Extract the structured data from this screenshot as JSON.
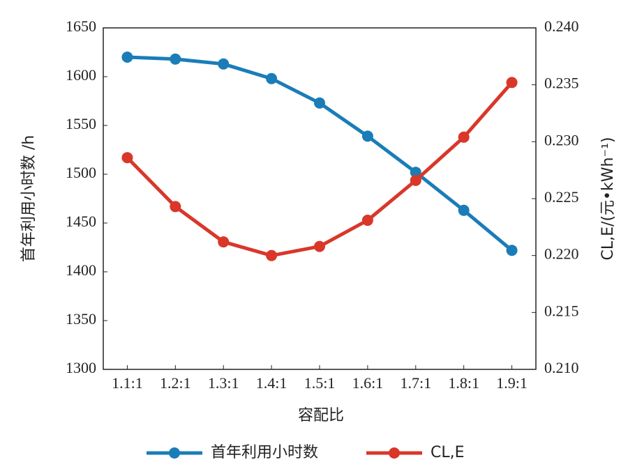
{
  "chart_data": {
    "type": "line",
    "ylabel": "首年利用小时数 /h",
    "y2label": "CL,E/(元•kWh⁻¹)",
    "xlabel": "容配比",
    "categories": [
      "1.1:1",
      "1.2:1",
      "1.3:1",
      "1.4:1",
      "1.5:1",
      "1.6:1",
      "1.7:1",
      "1.8:1",
      "1.9:1"
    ],
    "series": [
      {
        "name": "首年利用小时数",
        "color": "#1a7db8",
        "values": [
          1620,
          1618,
          1613,
          1598,
          1573,
          1539,
          1502,
          1463,
          1422
        ]
      },
      {
        "name": "CL,E",
        "color": "#d9372a",
        "axis": "y2",
        "values": [
          0.2286,
          0.2243,
          0.2212,
          0.22,
          0.2208,
          0.2231,
          0.2266,
          0.2304,
          0.2352
        ]
      }
    ],
    "ylim": [
      1300,
      1650
    ],
    "yticks": [
      1300,
      1350,
      1400,
      1450,
      1500,
      1550,
      1600,
      1650
    ],
    "y2lim": [
      0.21,
      0.24
    ],
    "y2ticks": [
      {
        "value": 0.21,
        "label": "0.210"
      },
      0.215,
      {
        "value": 0.22,
        "label": "0.220"
      },
      0.225,
      {
        "value": 0.23,
        "label": "0.230"
      },
      0.235,
      {
        "value": 0.24,
        "label": "0.240"
      }
    ]
  }
}
